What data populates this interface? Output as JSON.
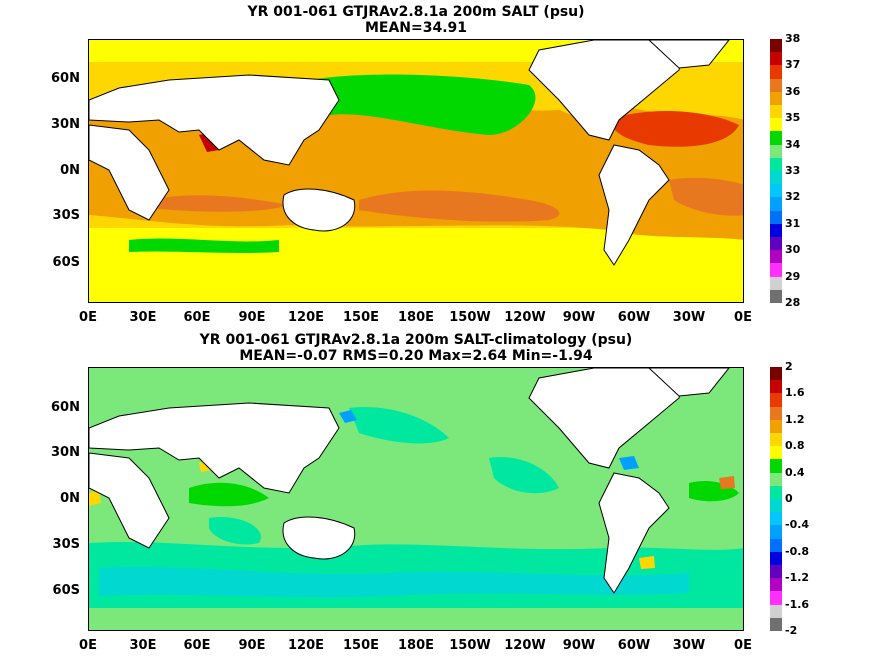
{
  "panels": [
    {
      "title_line1": "YR 001-061 GTJRAv2.8.1a 200m SALT (psu)",
      "title_line2": "MEAN=34.91",
      "colorbar": {
        "labels": [
          "38",
          "37",
          "36",
          "35",
          "34",
          "33",
          "32",
          "31",
          "30",
          "29",
          "28"
        ],
        "colors": [
          "#7a0000",
          "#c40000",
          "#e83a00",
          "#e87820",
          "#f0a000",
          "#ffd700",
          "#ffff00",
          "#00d800",
          "#7ce87c",
          "#00e8a0",
          "#00d8d0",
          "#00c8ff",
          "#00a0ff",
          "#0070ff",
          "#0000e0",
          "#6000c0",
          "#b000c0",
          "#ff30ff",
          "#d0d0d0",
          "#707070"
        ]
      }
    },
    {
      "title_line1": "YR 001-061 GTJRAv2.8.1a 200m SALT-climatology (psu)",
      "title_line2": "MEAN=-0.07   RMS=0.20   Max=2.64   Min=-1.94",
      "colorbar": {
        "labels": [
          "2",
          "1.6",
          "1.2",
          "0.8",
          "0.4",
          "0",
          "-0.4",
          "-0.8",
          "-1.2",
          "-1.6",
          "-2"
        ],
        "colors": [
          "#7a0000",
          "#c40000",
          "#e83a00",
          "#e87820",
          "#f0a000",
          "#ffd700",
          "#ffff00",
          "#00d800",
          "#7ce87c",
          "#00e8a0",
          "#00d8d0",
          "#00c8ff",
          "#00a0ff",
          "#0070ff",
          "#0000e0",
          "#6000c0",
          "#b000c0",
          "#ff30ff",
          "#d0d0d0",
          "#707070"
        ]
      }
    }
  ],
  "lat_labels": [
    "60N",
    "30N",
    "0N",
    "30S",
    "60S"
  ],
  "lon_labels": [
    "0E",
    "30E",
    "60E",
    "90E",
    "120E",
    "150E",
    "180E",
    "150W",
    "120W",
    "90W",
    "60W",
    "30W",
    "0E"
  ]
}
